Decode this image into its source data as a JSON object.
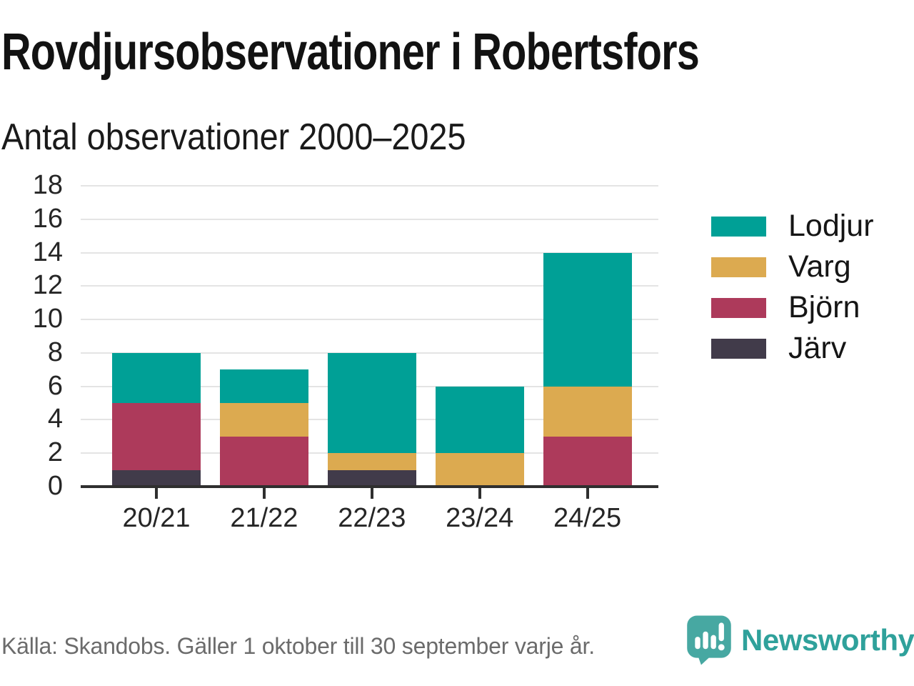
{
  "header": {
    "title": "Rovdjursobservationer i Robertsfors",
    "subtitle": "Antal observationer 2000–2025"
  },
  "chart_data": {
    "type": "bar",
    "stacked": true,
    "title": "Rovdjursobservationer i Robertsfors",
    "subtitle": "Antal observationer 2000–2025",
    "categories": [
      "20/21",
      "21/22",
      "22/23",
      "23/24",
      "24/25"
    ],
    "series": [
      {
        "name": "Lodjur",
        "color": "#00a096",
        "values": [
          3,
          2,
          6,
          4,
          8
        ]
      },
      {
        "name": "Varg",
        "color": "#dcaa50",
        "values": [
          0,
          2,
          1,
          2,
          3
        ]
      },
      {
        "name": "Björn",
        "color": "#ad3a5b",
        "values": [
          4,
          3,
          0,
          0,
          3
        ]
      },
      {
        "name": "Järv",
        "color": "#413b4a",
        "values": [
          1,
          0,
          1,
          0,
          0
        ]
      }
    ],
    "stack_order_bottom_to_top": [
      "Järv",
      "Björn",
      "Varg",
      "Lodjur"
    ],
    "totals_per_category": [
      8,
      7,
      8,
      6,
      14
    ],
    "xlabel": "",
    "ylabel": "",
    "ylim": [
      0,
      18
    ],
    "yticks": [
      0,
      2,
      4,
      6,
      8,
      10,
      12,
      14,
      16,
      18
    ],
    "grid": "horizontal-light",
    "legend_position": "right"
  },
  "legend": {
    "items": [
      "Lodjur",
      "Varg",
      "Björn",
      "Järv"
    ]
  },
  "footer": {
    "source": "Källa: Skandobs. Gäller 1 oktober till 30 september varje år."
  },
  "logo": {
    "wordmark": "Newsworthy",
    "icon": "speech-bubble-bar-chart-exclamation",
    "icon_color": "#47a8a2",
    "text_color": "#2fa19b"
  },
  "colors": {
    "background": "#ffffff",
    "title_text": "#121212",
    "axis_text": "#262626",
    "gridline": "#e4e4e4",
    "baseline": "#2f2f2f",
    "source_text": "#6b6b6b"
  }
}
